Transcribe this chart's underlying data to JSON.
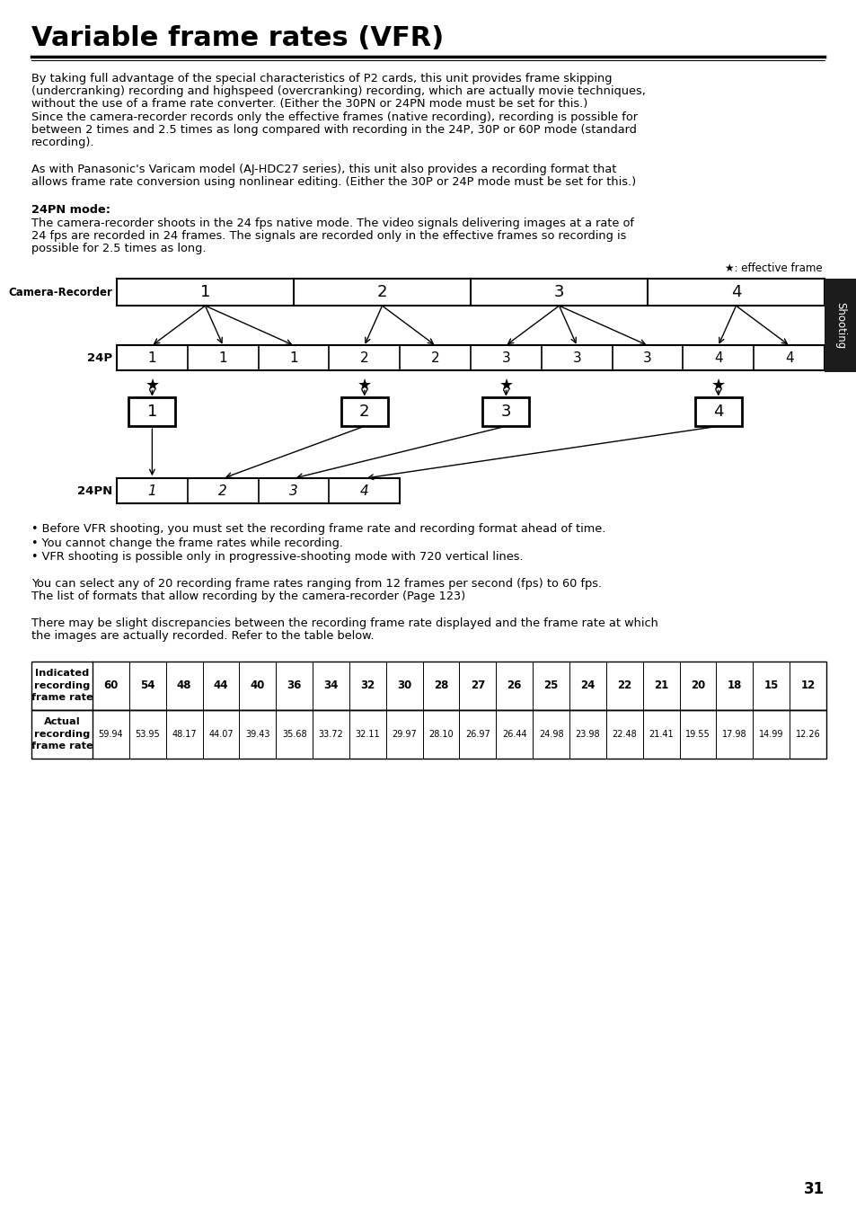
{
  "title": "Variable frame rates (VFR)",
  "title_fontsize": 22,
  "body_fontsize": 9.3,
  "page_number": "31",
  "background_color": "#ffffff",
  "text_color": "#000000",
  "paragraph1": "By taking full advantage of the special characteristics of P2 cards, this unit provides frame skipping\n(undercranking) recording and highspeed (overcranking) recording, which are actually movie techniques,\nwithout the use of a frame rate converter. (Either the 30PN or 24PN mode must be set for this.)\nSince the camera-recorder records only the effective frames (native recording), recording is possible for\nbetween 2 times and 2.5 times as long compared with recording in the 24P, 30P or 60P mode (standard\nrecording).",
  "paragraph2": "As with Panasonic's Varicam model (AJ-HDC27 series), this unit also provides a recording format that\nallows frame rate conversion using nonlinear editing. (Either the 30P or 24P mode must be set for this.)",
  "section_title": "24PN mode:",
  "paragraph3": "The camera-recorder shoots in the 24 fps native mode. The video signals delivering images at a rate of\n24 fps are recorded in 24 frames. The signals are recorded only in the effective frames so recording is\npossible for 2.5 times as long.",
  "star_label": "★: effective frame",
  "camera_recorder_label": "Camera-Recorder",
  "p24_label": "24P",
  "p24pn_label": "24PN",
  "shooting_label": "Shooting",
  "bullet1": "• Before VFR shooting, you must set the recording frame rate and recording format ahead of time.",
  "bullet2": "• You cannot change the frame rates while recording.",
  "bullet3": "• VFR shooting is possible only in progressive-shooting mode with 720 vertical lines.",
  "paragraph4": "You can select any of 20 recording frame rates ranging from 12 frames per second (fps) to 60 fps.\nThe list of formats that allow recording by the camera-recorder (Page 123)",
  "paragraph5": "There may be slight discrepancies between the recording frame rate displayed and the frame rate at which\nthe images are actually recorded. Refer to the table below.",
  "table_row1_label": "Indicated\nrecording\nframe rate",
  "table_row2_label": "Actual\nrecording\nframe rate",
  "table_row1_vals": [
    "60",
    "54",
    "48",
    "44",
    "40",
    "36",
    "34",
    "32",
    "30",
    "28",
    "27",
    "26",
    "25",
    "24",
    "22",
    "21",
    "20",
    "18",
    "15",
    "12"
  ],
  "table_row2_vals": [
    "59.94",
    "53.95",
    "48.17",
    "44.07",
    "39.43",
    "35.68",
    "33.72",
    "32.11",
    "29.97",
    "28.10",
    "26.97",
    "26.44",
    "24.98",
    "23.98",
    "22.48",
    "21.41",
    "19.55",
    "17.98",
    "14.99",
    "12.26"
  ]
}
